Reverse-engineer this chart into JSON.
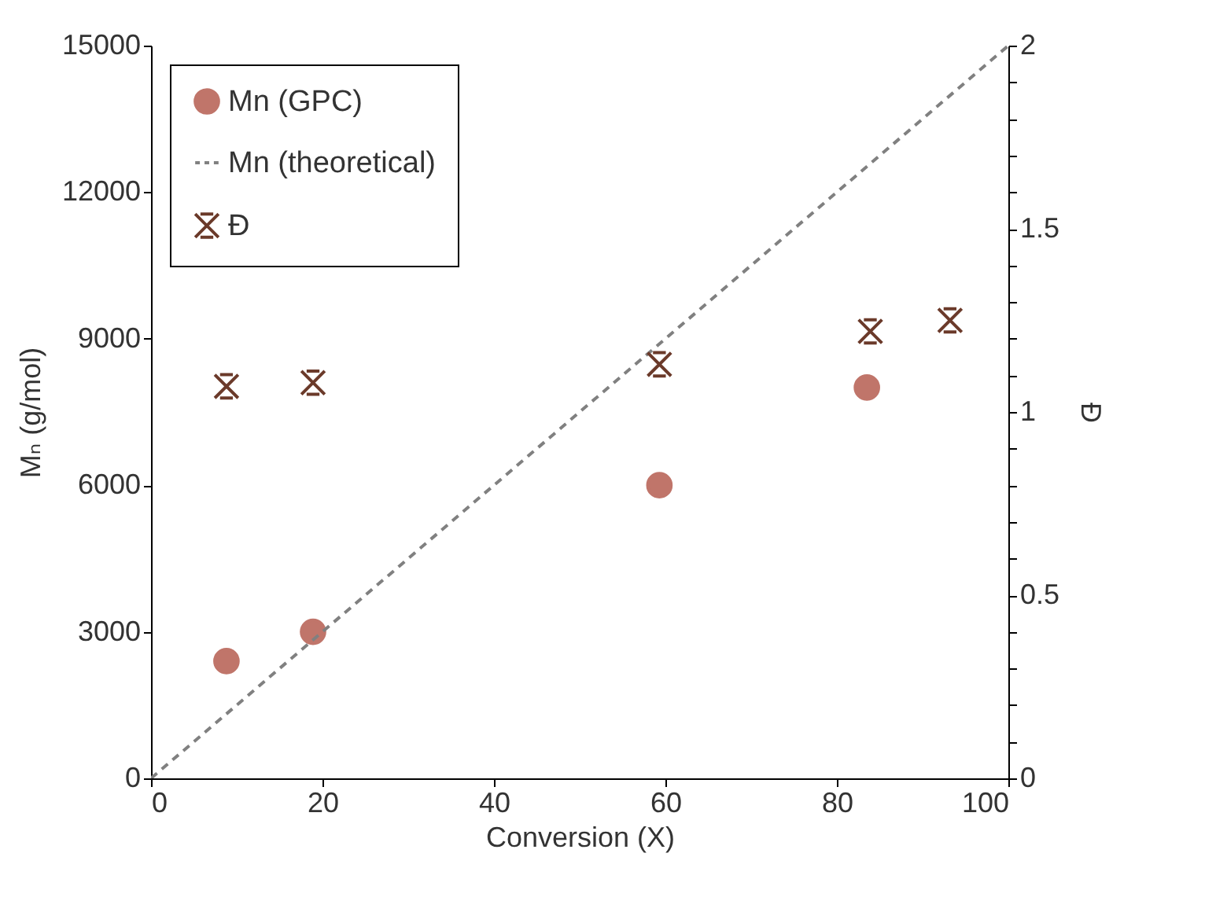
{
  "chart_data": {
    "type": "scatter",
    "xlabel": "Conversion (X)",
    "ylabel": "Mₙ (g/mol)",
    "y2label": "Đ",
    "xlim": [
      0,
      100
    ],
    "xticks": [
      0,
      20,
      40,
      60,
      80,
      100
    ],
    "ylim": [
      0,
      15000
    ],
    "yticks": [
      0,
      3000,
      6000,
      9000,
      12000,
      15000
    ],
    "y2lim": [
      0,
      2
    ],
    "y2ticks": [
      0,
      {
        "value": 0.1,
        "label": null
      },
      {
        "value": 0.2,
        "label": null
      },
      {
        "value": 0.3,
        "label": null
      },
      {
        "value": 0.4,
        "label": null
      },
      0.5,
      {
        "value": 0.6,
        "label": null
      },
      {
        "value": 0.7,
        "label": null
      },
      {
        "value": 0.8,
        "label": null
      },
      {
        "value": 0.9,
        "label": null
      },
      1,
      {
        "value": 1.1,
        "label": null
      },
      {
        "value": 1.2,
        "label": null
      },
      {
        "value": 1.3,
        "label": null
      },
      {
        "value": 1.4,
        "label": null
      },
      1.5,
      {
        "value": 1.6,
        "label": null
      },
      {
        "value": 1.7,
        "label": null
      },
      {
        "value": 1.8,
        "label": null
      },
      {
        "value": 1.9,
        "label": null
      },
      2
    ],
    "grid": false,
    "legend": "top left",
    "series": [
      {
        "name": "Mn (GPC)",
        "color": "#c0756a",
        "marker": "circle",
        "x": [
          8.8,
          18.9,
          59.3,
          83.5
        ],
        "values": [
          2400,
          3000,
          6000,
          8000
        ]
      },
      {
        "name": "Mn (theoretical)",
        "color": "#808080",
        "type": "line",
        "line_style": "dashed",
        "x": [
          0,
          100
        ],
        "values": [
          0,
          15000
        ]
      },
      {
        "name": "Đ",
        "color": "#6b3a2a",
        "marker": "cross",
        "axis": "y2",
        "x": [
          8.8,
          18.9,
          59.3,
          83.9,
          93.2
        ],
        "values": [
          1.07,
          1.08,
          1.13,
          1.22,
          1.25
        ]
      }
    ]
  }
}
